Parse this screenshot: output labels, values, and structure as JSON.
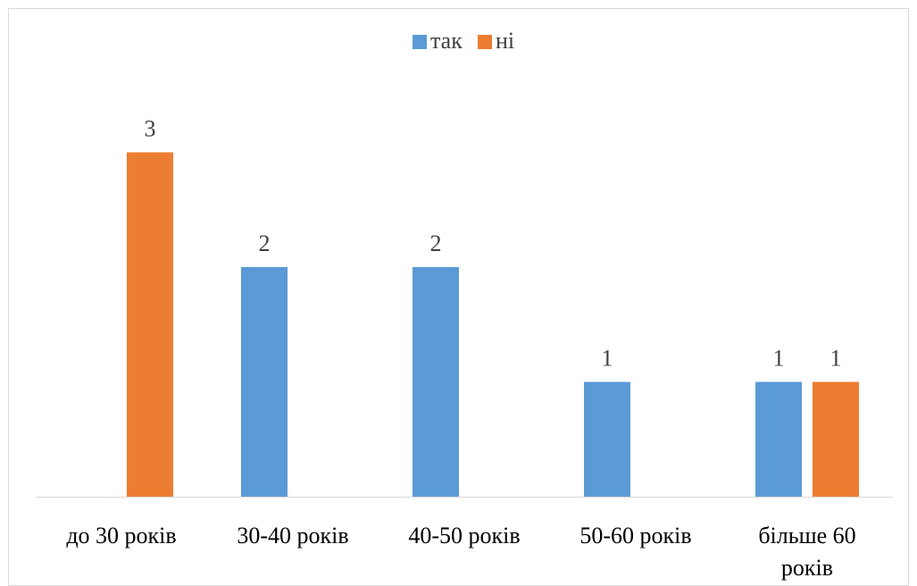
{
  "chart_data": {
    "type": "bar",
    "title": "",
    "xlabel": "",
    "ylabel": "",
    "categories": [
      [
        "до 30 років"
      ],
      [
        "30-40 років"
      ],
      [
        "40-50 років"
      ],
      [
        "50-60 років"
      ],
      [
        "більше 60",
        "років"
      ]
    ],
    "series": [
      {
        "name": "так",
        "color": "#5b9bd5",
        "values": [
          null,
          2,
          2,
          1,
          1
        ]
      },
      {
        "name": "ні",
        "color": "#ed7d31",
        "values": [
          3,
          null,
          null,
          null,
          1
        ]
      }
    ],
    "ylim": [
      0,
      3.3
    ],
    "grid": false,
    "legend_position": "top",
    "data_labels": true
  }
}
